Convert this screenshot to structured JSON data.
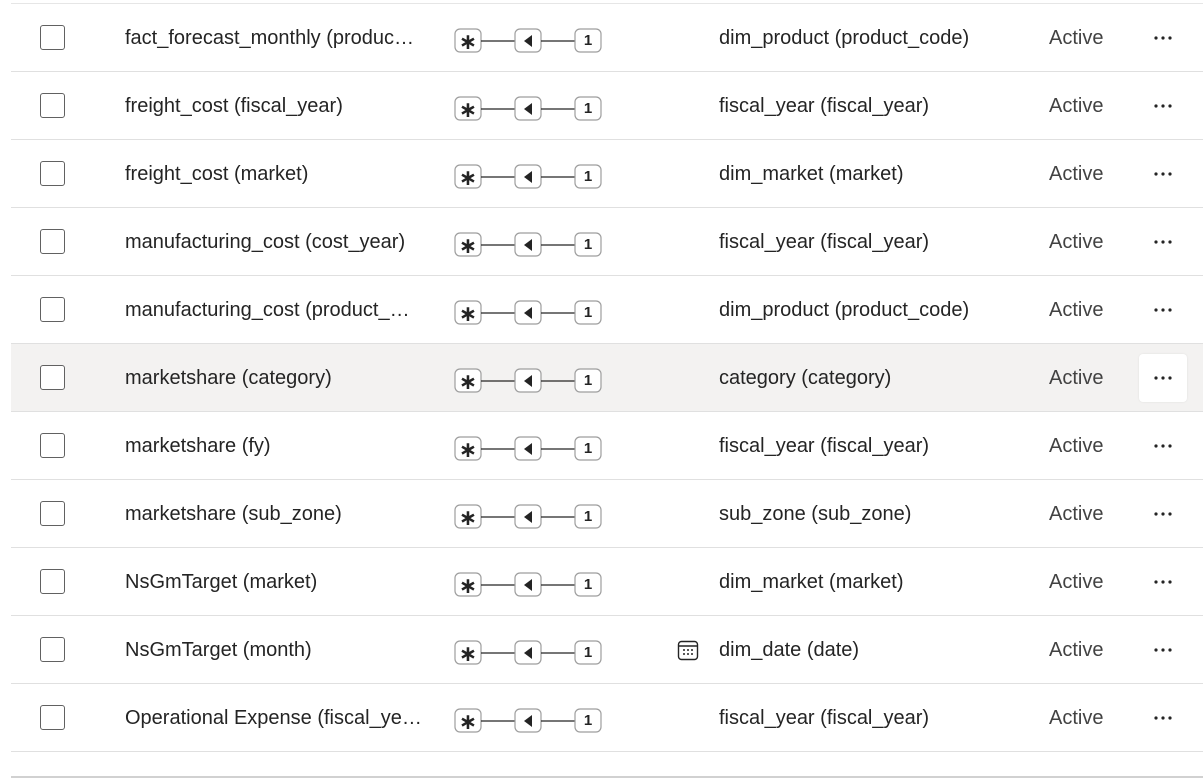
{
  "colors": {
    "border": "#e0e0e0",
    "hover_row": "#f3f2f1",
    "icon": "#242424"
  },
  "cardinality": {
    "many_symbol": "∗",
    "one_symbol": "1",
    "icon": "cross-filter-single-direction-icon"
  },
  "rows": [
    {
      "from": "fact_forecast_monthly (produc…",
      "to": "dim_product (product_code)",
      "status": "Active",
      "to_icon": ""
    },
    {
      "from": "freight_cost (fiscal_year)",
      "to": "fiscal_year (fiscal_year)",
      "status": "Active",
      "to_icon": ""
    },
    {
      "from": "freight_cost (market)",
      "to": "dim_market (market)",
      "status": "Active",
      "to_icon": ""
    },
    {
      "from": "manufacturing_cost (cost_year)",
      "to": "fiscal_year (fiscal_year)",
      "status": "Active",
      "to_icon": ""
    },
    {
      "from": "manufacturing_cost (product_…",
      "to": "dim_product (product_code)",
      "status": "Active",
      "to_icon": ""
    },
    {
      "from": "marketshare (category)",
      "to": "category (category)",
      "status": "Active",
      "to_icon": "",
      "hovered": true
    },
    {
      "from": "marketshare (fy)",
      "to": "fiscal_year (fiscal_year)",
      "status": "Active",
      "to_icon": ""
    },
    {
      "from": "marketshare (sub_zone)",
      "to": "sub_zone (sub_zone)",
      "status": "Active",
      "to_icon": ""
    },
    {
      "from": "NsGmTarget (market)",
      "to": "dim_market (market)",
      "status": "Active",
      "to_icon": ""
    },
    {
      "from": "NsGmTarget (month)",
      "to": "dim_date (date)",
      "status": "Active",
      "to_icon": "calendar-icon"
    },
    {
      "from": "Operational Expense (fiscal_ye…",
      "to": "fiscal_year (fiscal_year)",
      "status": "Active",
      "to_icon": ""
    }
  ]
}
